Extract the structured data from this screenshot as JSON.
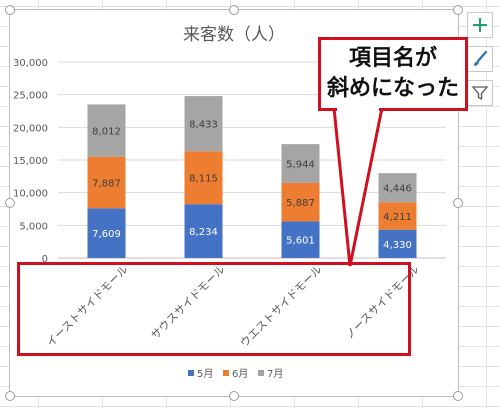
{
  "colors": {
    "series_5": "#4472c4",
    "series_6": "#ed7d31",
    "series_7": "#a5a5a5",
    "callout_red": "#d0101f",
    "plus_green": "#21a366",
    "brush_blue": "#2e75b6"
  },
  "side_buttons": {
    "add_element_icon": "plus-icon",
    "style_icon": "paintbrush-icon",
    "filter_icon": "filter-icon"
  },
  "callout": {
    "text": "項目名が\n斜めになった"
  },
  "chart_data": {
    "type": "bar",
    "stacked": true,
    "title": "来客数（人）",
    "categories": [
      "イーストサイドモール",
      "サウスサイドモール",
      "ウエストサイドモール",
      "ノースサイドモール"
    ],
    "series": [
      {
        "name": "5月",
        "values": [
          7609,
          8234,
          5601,
          4330
        ],
        "labels": [
          "7,609",
          "8,234",
          "5,601",
          "4,330"
        ]
      },
      {
        "name": "6月",
        "values": [
          7887,
          8115,
          5887,
          4211
        ],
        "labels": [
          "7,887",
          "8,115",
          "5,887",
          "4,211"
        ]
      },
      {
        "name": "7月",
        "values": [
          8012,
          8433,
          5944,
          4446
        ],
        "labels": [
          "8,012",
          "8,433",
          "5,944",
          "4,446"
        ]
      }
    ],
    "ylim": [
      0,
      30000
    ],
    "yticks": [
      "0",
      "5,000",
      "10,000",
      "15,000",
      "20,000",
      "25,000",
      "30,000"
    ],
    "grid": true,
    "legend_position": "bottom",
    "x_label_rotation_deg": -45
  }
}
